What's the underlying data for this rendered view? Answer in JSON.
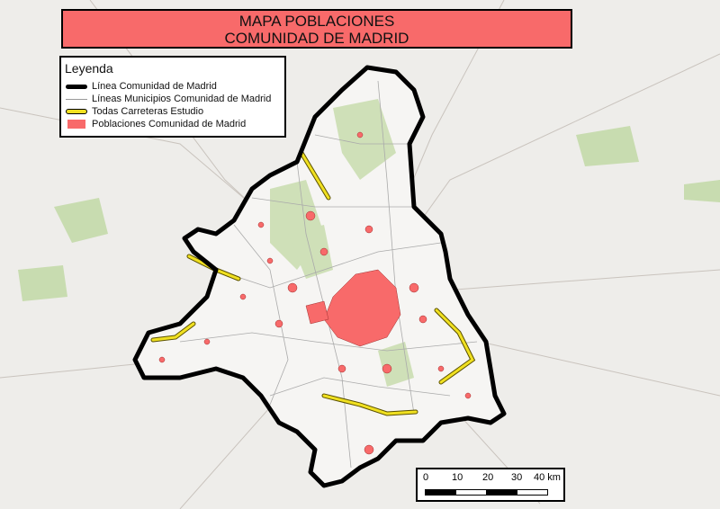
{
  "title": {
    "line1": "MAPA POBLACIONES",
    "line2": "COMUNIDAD DE MADRID"
  },
  "legend": {
    "heading": "Leyenda",
    "items": [
      {
        "label": "Línea Comunidad de Madrid",
        "symbol": "thick-black-line"
      },
      {
        "label": "Líneas Municipios Comunidad de Madrid",
        "symbol": "thin-grey-line"
      },
      {
        "label": "Todas Carreteras Estudio",
        "symbol": "yellow-line"
      },
      {
        "label": "Poblaciones Comunidad de Madrid",
        "symbol": "salmon-fill"
      }
    ]
  },
  "scale_bar": {
    "ticks": [
      "0",
      "10",
      "20",
      "30",
      "40 km"
    ]
  },
  "colors": {
    "title_bg": "#f86a6a",
    "boundary": "#000000",
    "municipal": "#999999",
    "roads": "#f0e020",
    "towns": "#f86a6a",
    "forest": "#c8dcb0",
    "basemap": "#eeedea"
  }
}
